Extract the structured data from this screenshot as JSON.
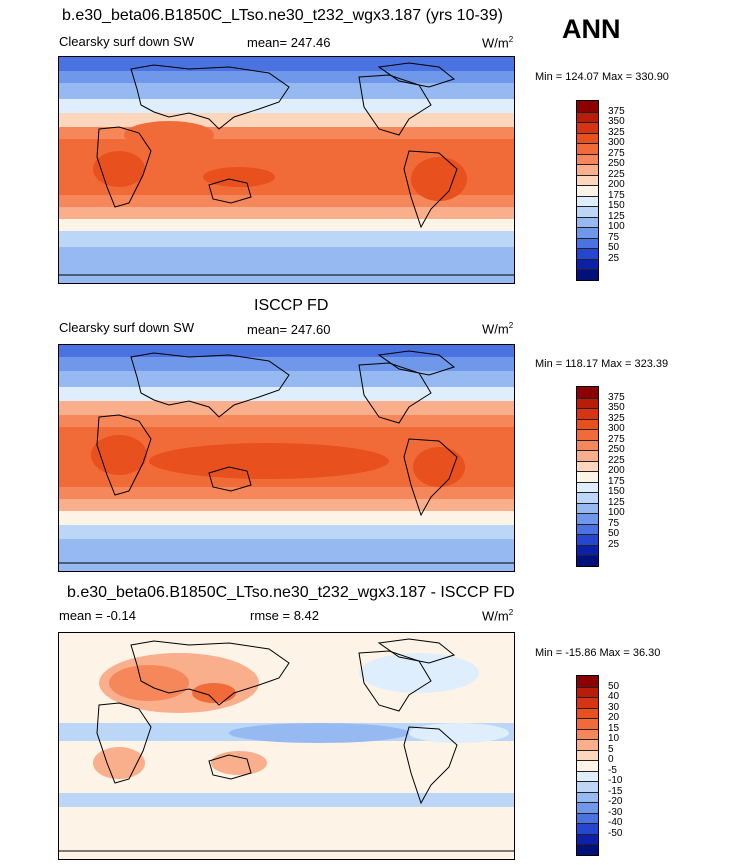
{
  "season": "ANN",
  "panels": [
    {
      "title": "b.e30_beta06.B1850C_LTso.ne30_t232_wgx3.187 (yrs 10-39)",
      "left_label": "Clearsky surf down SW",
      "center_label": "mean= 247.46",
      "units": "W/m",
      "units_exp": "2",
      "minmax": "Min = 124.07 Max = 330.90",
      "levels": [
        "375",
        "350",
        "325",
        "300",
        "275",
        "250",
        "225",
        "200",
        "175",
        "150",
        "125",
        "100",
        "75",
        "50",
        "25"
      ],
      "colors": [
        "#8b0000",
        "#b81d0a",
        "#d73414",
        "#e8501e",
        "#f16b39",
        "#f6875a",
        "#f9ae8c",
        "#fcd6bd",
        "#fdf3e6",
        "#dfeefd",
        "#bcd6f8",
        "#96b9f1",
        "#6f97ea",
        "#4a72e0",
        "#2547d0",
        "#0b22a8",
        "#00127a"
      ]
    },
    {
      "title": "ISCCP FD",
      "left_label": "Clearsky surf down SW",
      "center_label": "mean= 247.60",
      "units": "W/m",
      "units_exp": "2",
      "minmax": "Min = 118.17 Max = 323.39",
      "levels": [
        "375",
        "350",
        "325",
        "300",
        "275",
        "250",
        "225",
        "200",
        "175",
        "150",
        "125",
        "100",
        "75",
        "50",
        "25"
      ],
      "colors": [
        "#8b0000",
        "#b81d0a",
        "#d73414",
        "#e8501e",
        "#f16b39",
        "#f6875a",
        "#f9ae8c",
        "#fcd6bd",
        "#fdf3e6",
        "#dfeefd",
        "#bcd6f8",
        "#96b9f1",
        "#6f97ea",
        "#4a72e0",
        "#2547d0",
        "#0b22a8",
        "#00127a"
      ]
    },
    {
      "title": "b.e30_beta06.B1850C_LTso.ne30_t232_wgx3.187 - ISCCP FD",
      "left_label": "mean =  -0.14",
      "center_label": "rmse =   8.42",
      "units": "W/m",
      "units_exp": "2",
      "minmax": "Min = -15.86 Max =  36.30",
      "levels": [
        "50",
        "40",
        "30",
        "20",
        "15",
        "10",
        "5",
        "0",
        "-5",
        "-10",
        "-15",
        "-20",
        "-30",
        "-40",
        "-50"
      ],
      "colors": [
        "#8b0000",
        "#b81d0a",
        "#d73414",
        "#e8501e",
        "#f16b39",
        "#f6875a",
        "#f9ae8c",
        "#fcd6bd",
        "#fdf3e6",
        "#dfeefd",
        "#bcd6f8",
        "#96b9f1",
        "#6f97ea",
        "#4a72e0",
        "#2547d0",
        "#0b22a8",
        "#00127a"
      ]
    }
  ]
}
